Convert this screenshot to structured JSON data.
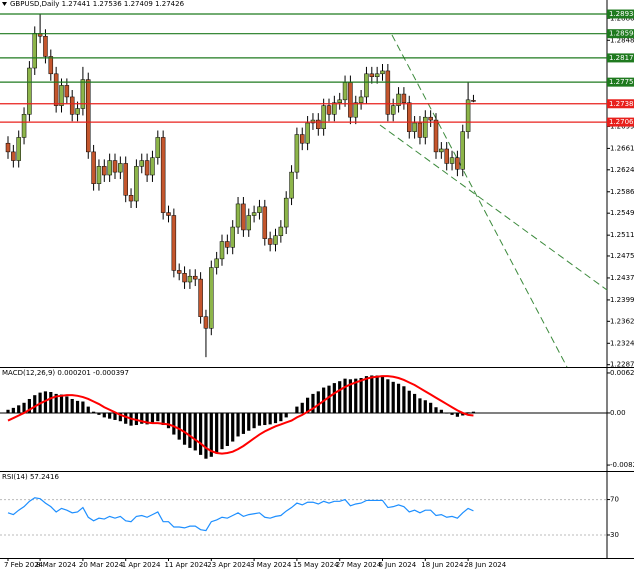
{
  "chart_data": [
    {
      "type": "candlestick",
      "title": "GBPUSD,Daily  1.27441 1.27536 1.27409 1.27426",
      "categories": [
        "7 Feb 2024",
        null,
        null,
        null,
        null,
        null,
        "8 Mar 2024",
        null,
        null,
        null,
        null,
        null,
        null,
        null,
        "20 Mar 2024",
        null,
        null,
        null,
        null,
        null,
        null,
        null,
        "1 Apr 2024",
        null,
        null,
        null,
        null,
        null,
        null,
        null,
        "11 Apr 2024",
        null,
        null,
        null,
        null,
        null,
        null,
        null,
        "23 Apr 2024",
        null,
        null,
        null,
        null,
        null,
        null,
        null,
        "3 May 2024",
        null,
        null,
        null,
        null,
        null,
        null,
        null,
        "15 May 2024",
        null,
        null,
        null,
        null,
        null,
        null,
        null,
        "27 May 2024",
        null,
        null,
        null,
        null,
        null,
        null,
        null,
        "6 Jun 2024",
        null,
        null,
        null,
        null,
        null,
        null,
        null,
        "18 Jun 2024",
        null,
        null,
        null,
        null,
        null,
        null,
        null,
        "28 Jun 2024",
        null
      ],
      "open": [
        1.267,
        1.2655,
        1.264,
        1.268,
        1.272,
        1.28,
        1.286,
        1.2855,
        1.282,
        1.279,
        1.2735,
        1.277,
        1.275,
        1.272,
        1.273,
        1.278,
        1.2655,
        1.26,
        1.263,
        1.2615,
        1.264,
        1.262,
        1.2635,
        1.258,
        1.257,
        1.263,
        1.264,
        1.2615,
        1.2645,
        1.268,
        1.255,
        1.2545,
        1.245,
        1.2445,
        1.243,
        1.244,
        1.2435,
        1.237,
        1.235,
        1.2455,
        1.247,
        1.25,
        1.249,
        1.2525,
        1.2565,
        1.252,
        1.2545,
        1.255,
        1.256,
        1.2505,
        1.2495,
        1.251,
        1.2525,
        1.2575,
        1.262,
        1.2685,
        1.267,
        1.2705,
        1.271,
        1.2695,
        1.2735,
        1.272,
        1.274,
        1.2745,
        1.2775,
        1.2715,
        1.274,
        1.275,
        1.279,
        1.2785,
        1.279,
        1.2795,
        1.272,
        1.2735,
        1.2755,
        1.274,
        1.269,
        1.2705,
        1.268,
        1.2715,
        1.271,
        1.2655,
        1.266,
        1.2635,
        1.2645,
        1.2625,
        1.269,
        1.27441
      ],
      "high": [
        1.2682,
        1.2667,
        1.2692,
        1.2732,
        1.2812,
        1.2872,
        1.2894,
        1.2867,
        1.2832,
        1.2802,
        1.2782,
        1.2782,
        1.2762,
        1.2742,
        1.2802,
        1.2792,
        1.2667,
        1.2642,
        1.2642,
        1.2652,
        1.2652,
        1.2647,
        1.2647,
        1.2592,
        1.2642,
        1.2652,
        1.2652,
        1.2657,
        1.2692,
        1.2692,
        1.2562,
        1.2557,
        1.2462,
        1.2457,
        1.2452,
        1.2452,
        1.2447,
        1.2382,
        1.2467,
        1.2482,
        1.2512,
        1.2512,
        1.2537,
        1.2577,
        1.2577,
        1.2557,
        1.2562,
        1.2572,
        1.2572,
        1.2517,
        1.2522,
        1.2537,
        1.2587,
        1.2632,
        1.2697,
        1.2697,
        1.2717,
        1.2722,
        1.2722,
        1.2747,
        1.2747,
        1.2752,
        1.2757,
        1.2787,
        1.2787,
        1.2752,
        1.2762,
        1.2802,
        1.2802,
        1.2802,
        1.2807,
        1.2807,
        1.2747,
        1.2767,
        1.2767,
        1.2752,
        1.2717,
        1.2717,
        1.2727,
        1.2727,
        1.2722,
        1.2672,
        1.2672,
        1.2657,
        1.2657,
        1.2702,
        1.2775,
        1.27536
      ],
      "low": [
        1.2643,
        1.2628,
        1.2628,
        1.2668,
        1.2708,
        1.2788,
        1.2843,
        1.2808,
        1.2778,
        1.2723,
        1.2723,
        1.2738,
        1.2708,
        1.2708,
        1.2718,
        1.2643,
        1.2588,
        1.2588,
        1.2603,
        1.2603,
        1.2608,
        1.2608,
        1.2568,
        1.2558,
        1.2558,
        1.2618,
        1.2603,
        1.2603,
        1.2633,
        1.2538,
        1.2533,
        1.2438,
        1.2433,
        1.2418,
        1.2418,
        1.2423,
        1.2358,
        1.23,
        1.2338,
        1.2443,
        1.2458,
        1.2478,
        1.2478,
        1.2513,
        1.2508,
        1.2508,
        1.2533,
        1.2538,
        1.2493,
        1.2483,
        1.2483,
        1.2498,
        1.2513,
        1.2563,
        1.2608,
        1.2658,
        1.2658,
        1.2693,
        1.2683,
        1.2683,
        1.2708,
        1.2708,
        1.2728,
        1.2733,
        1.2703,
        1.2703,
        1.2728,
        1.2738,
        1.2773,
        1.2773,
        1.2778,
        1.2708,
        1.2708,
        1.2723,
        1.2728,
        1.2678,
        1.2678,
        1.2668,
        1.2668,
        1.2698,
        1.2643,
        1.2643,
        1.2623,
        1.2623,
        1.2613,
        1.2613,
        1.2678,
        1.27409
      ],
      "close": [
        1.2655,
        1.264,
        1.268,
        1.272,
        1.28,
        1.286,
        1.2855,
        1.282,
        1.279,
        1.2735,
        1.277,
        1.275,
        1.272,
        1.273,
        1.278,
        1.2655,
        1.26,
        1.263,
        1.2615,
        1.264,
        1.262,
        1.2635,
        1.258,
        1.257,
        1.263,
        1.264,
        1.2615,
        1.2645,
        1.268,
        1.255,
        1.2545,
        1.245,
        1.2445,
        1.243,
        1.244,
        1.2435,
        1.237,
        1.235,
        1.2455,
        1.247,
        1.25,
        1.249,
        1.2525,
        1.2565,
        1.252,
        1.2545,
        1.255,
        1.256,
        1.2505,
        1.2495,
        1.251,
        1.2525,
        1.2575,
        1.262,
        1.2685,
        1.267,
        1.2705,
        1.271,
        1.2695,
        1.2735,
        1.272,
        1.274,
        1.2745,
        1.2775,
        1.2715,
        1.274,
        1.275,
        1.279,
        1.2785,
        1.279,
        1.2795,
        1.272,
        1.2735,
        1.2755,
        1.274,
        1.269,
        1.2705,
        1.268,
        1.2715,
        1.271,
        1.2655,
        1.266,
        1.2635,
        1.2645,
        1.2625,
        1.269,
        1.2745,
        1.27426
      ],
      "up_color": "#8db54a",
      "down_color": "#c4562d",
      "ylim": [
        1.2283,
        1.2909
      ],
      "yticks": [
        {
          "value": 1.2886,
          "label": "1.28860"
        },
        {
          "value": 1.2848,
          "label": "1.28480"
        },
        {
          "value": 1.2699,
          "label": "1.26990"
        },
        {
          "value": 1.2661,
          "label": "1.26610"
        },
        {
          "value": 1.2624,
          "label": "1.26240"
        },
        {
          "value": 1.2586,
          "label": "1.25860"
        },
        {
          "value": 1.2549,
          "label": "1.25490"
        },
        {
          "value": 1.2511,
          "label": "1.25110"
        },
        {
          "value": 1.2475,
          "label": "1.24750"
        },
        {
          "value": 1.2437,
          "label": "1.24370"
        },
        {
          "value": 1.2399,
          "label": "1.23990"
        },
        {
          "value": 1.2362,
          "label": "1.23620"
        },
        {
          "value": 1.2324,
          "label": "1.23240"
        },
        {
          "value": 1.2287,
          "label": "1.22870"
        }
      ],
      "levels": [
        {
          "value": 1.28934,
          "color": "#1f7a1f"
        },
        {
          "value": 1.28594,
          "color": "#1f7a1f"
        },
        {
          "value": 1.28175,
          "color": "#1f7a1f"
        },
        {
          "value": 1.27756,
          "color": "#1f7a1f"
        },
        {
          "value": 1.27382,
          "color": "#e8201c"
        },
        {
          "value": 1.27065,
          "color": "#e8201c"
        }
      ]
    },
    {
      "type": "bar",
      "title": "MACD(12,26,9) 0.000201 -0.000397",
      "series": [
        {
          "type": "bar",
          "color": "#000000",
          "values": [
            0.0005,
            0.0008,
            0.0012,
            0.0016,
            0.0022,
            0.0028,
            0.0032,
            0.0034,
            0.0033,
            0.003,
            0.0029,
            0.0026,
            0.0022,
            0.0019,
            0.0018,
            0.001,
            0.0002,
            -0.0003,
            -0.0007,
            -0.0009,
            -0.0011,
            -0.0013,
            -0.0017,
            -0.002,
            -0.0019,
            -0.0017,
            -0.0018,
            -0.0016,
            -0.0013,
            -0.0019,
            -0.0024,
            -0.0034,
            -0.0042,
            -0.005,
            -0.0055,
            -0.0059,
            -0.0066,
            -0.0072,
            -0.0069,
            -0.0064,
            -0.0057,
            -0.0052,
            -0.0045,
            -0.0037,
            -0.0033,
            -0.0028,
            -0.0024,
            -0.002,
            -0.0019,
            -0.0018,
            -0.0016,
            -0.0013,
            -0.0007,
            0.0,
            0.001,
            0.0016,
            0.0024,
            0.003,
            0.0034,
            0.004,
            0.0043,
            0.0047,
            0.005,
            0.0054,
            0.0053,
            0.0054,
            0.0055,
            0.0058,
            0.0059,
            0.0059,
            0.0059,
            0.0053,
            0.0049,
            0.0046,
            0.0042,
            0.0035,
            0.003,
            0.0023,
            0.002,
            0.0016,
            0.0009,
            0.0005,
            -0.0001,
            -0.0003,
            -0.0006,
            -0.0004,
            0.0001,
            0.000201
          ]
        },
        {
          "type": "line",
          "color": "#ff0000",
          "values": [
            -0.0012,
            -0.0008,
            -0.0004,
            0.0,
            0.0005,
            0.001,
            0.0015,
            0.0019,
            0.0023,
            0.0026,
            0.0027,
            0.0028,
            0.0028,
            0.0027,
            0.0025,
            0.0022,
            0.0018,
            0.0014,
            0.0009,
            0.0005,
            0.0001,
            -0.0003,
            -0.0006,
            -0.0009,
            -0.0011,
            -0.0013,
            -0.0015,
            -0.0016,
            -0.0016,
            -0.0017,
            -0.0018,
            -0.0021,
            -0.0025,
            -0.003,
            -0.0036,
            -0.0042,
            -0.0048,
            -0.0055,
            -0.006,
            -0.0063,
            -0.0064,
            -0.0063,
            -0.0061,
            -0.0057,
            -0.0052,
            -0.0046,
            -0.004,
            -0.0034,
            -0.0029,
            -0.0025,
            -0.0021,
            -0.0018,
            -0.0015,
            -0.0012,
            -0.0007,
            -0.0003,
            0.0002,
            0.0007,
            0.0013,
            0.0019,
            0.0025,
            0.0031,
            0.0036,
            0.0041,
            0.0045,
            0.0048,
            0.0051,
            0.0054,
            0.0056,
            0.0057,
            0.0058,
            0.0058,
            0.0057,
            0.0055,
            0.0052,
            0.0048,
            0.0044,
            0.0039,
            0.0034,
            0.0029,
            0.0024,
            0.0019,
            0.0014,
            0.0009,
            0.0004,
            0.0,
            -0.0003,
            -0.000397
          ]
        }
      ],
      "ylim": [
        -0.00898,
        0.00692
      ],
      "yticks": [
        0.006296,
        {
          "value": 0,
          "label": "0.00"
        },
        -0.008203
      ]
    },
    {
      "type": "line",
      "title": "RSI(14) 57.2416",
      "series": [
        {
          "color": "#1e8fff",
          "values": [
            55,
            53,
            58,
            62,
            68,
            72,
            71,
            66,
            62,
            56,
            60,
            58,
            55,
            56,
            61,
            50,
            46,
            49,
            48,
            51,
            49,
            51,
            46,
            45,
            51,
            52,
            50,
            53,
            56,
            45,
            45,
            39,
            39,
            38,
            40,
            40,
            36,
            35,
            45,
            47,
            50,
            49,
            52,
            55,
            51,
            53,
            54,
            55,
            50,
            49,
            51,
            52,
            57,
            61,
            66,
            64,
            67,
            67,
            65,
            68,
            66,
            68,
            68,
            70,
            63,
            65,
            66,
            69,
            69,
            69,
            69,
            61,
            62,
            64,
            62,
            56,
            58,
            55,
            58,
            58,
            52,
            53,
            50,
            51,
            49,
            55,
            60,
            57.2416
          ]
        }
      ],
      "ylim": [
        4,
        100
      ],
      "yticks": [
        70,
        30
      ]
    }
  ]
}
